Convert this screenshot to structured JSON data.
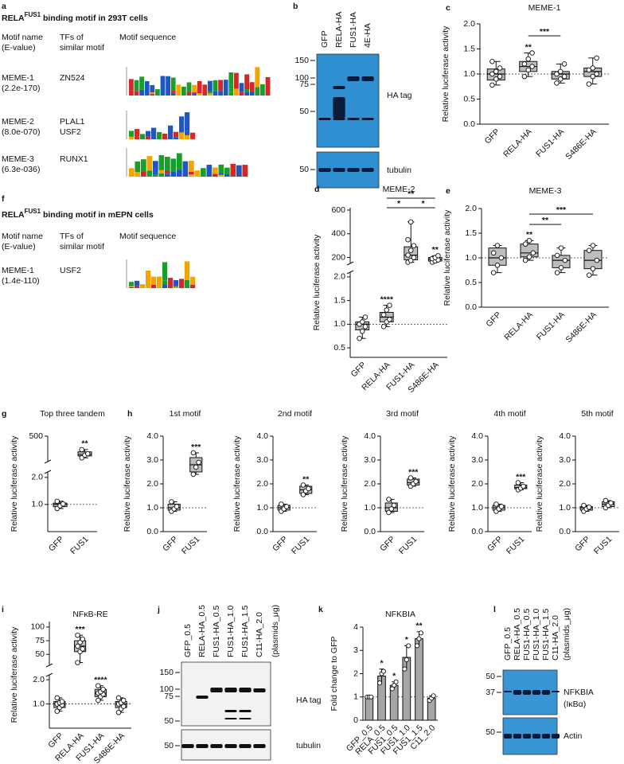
{
  "motifs": [
    {
      "panel": "a",
      "title_parts": [
        "RELA",
        "FUS1",
        " binding motif in 293T cells"
      ],
      "headers": [
        [
          "Motif name",
          "(E-value)"
        ],
        [
          "TFs of",
          "similar motif"
        ],
        [
          "Motif sequence"
        ]
      ],
      "rows": [
        {
          "name": "MEME-1",
          "evalue": "(2.2e-170)",
          "tfs": [
            "ZN524"
          ]
        },
        {
          "name": "MEME-2",
          "evalue": "(8.0e-070)",
          "tfs": [
            "PLAL1",
            "USF2"
          ]
        },
        {
          "name": "MEME-3",
          "evalue": "(6.3e-036)",
          "tfs": [
            "RUNX1"
          ]
        }
      ]
    },
    {
      "panel": "f",
      "title_parts": [
        "RELA",
        "FUS1",
        " binding motif in mEPN cells"
      ],
      "headers": [
        [
          "Motif name",
          "(E-value)"
        ],
        [
          "TFs of",
          "similar motif"
        ],
        [
          "Motif sequence"
        ]
      ],
      "rows": [
        {
          "name": "MEME-1",
          "evalue": "(1.4e-110)",
          "tfs": [
            "USF2"
          ]
        }
      ]
    }
  ],
  "blots": [
    {
      "panel": "b",
      "lanes": [
        "GFP",
        "RELA-HA",
        "FUS1-HA",
        "4E-HA"
      ],
      "markers_top": [
        150,
        100,
        75,
        50
      ],
      "markers_bottom": [
        50
      ],
      "labels_top": [
        "HA tag"
      ],
      "labels_bottom": [
        "tubulin"
      ]
    },
    {
      "panel": "j",
      "lanes": [
        "GFP_0.5",
        "RELA-HA_0.5",
        "FUS1-HA_0.5",
        "FUS1-HA_1.0",
        "FUS1-HA_1.5",
        "C11-HA_2.0"
      ],
      "note": "(plasmids_μg)",
      "markers_top": [
        150,
        100,
        75,
        50
      ],
      "markers_bottom": [
        50
      ],
      "labels_top": [
        "HA tag"
      ],
      "labels_bottom": [
        "tubulin"
      ]
    },
    {
      "panel": "l",
      "lanes": [
        "GFP_0.5",
        "RELA-HA_0.5",
        "FUS1-HA_0.5",
        "FUS1-HA_1.0",
        "FUS1-HA_1.5",
        "C11-HA_2.0"
      ],
      "note": "(plasmids_μg)",
      "markers_top": [
        50,
        37
      ],
      "markers_bottom": [
        50
      ],
      "labels_top": [
        "NFKBIA",
        "(IκBα)"
      ],
      "labels_bottom": [
        "Actin"
      ]
    }
  ],
  "chart_data": [
    {
      "panel": "c",
      "type": "box",
      "title": "MEME-1",
      "ylabel": "Relative luciferase activity",
      "color": "#bdbdbd",
      "categories": [
        "GFP",
        "RELA-HA",
        "FUS1-HA",
        "S486E-HA"
      ],
      "ylim": [
        0,
        2
      ],
      "yticks": [
        {
          "value": 0,
          "label": "0.0"
        },
        {
          "value": 0.5,
          "label": "0.5"
        },
        {
          "value": 1,
          "label": "1.0"
        },
        {
          "value": 1.5,
          "label": "1.5"
        },
        {
          "value": 2,
          "label": "2.0"
        }
      ],
      "refline": 1,
      "boxes": [
        {
          "min": 0.78,
          "q1": 0.88,
          "median": 1.0,
          "q3": 1.1,
          "max": 1.25,
          "points": [
            0.78,
            0.9,
            0.95,
            1.0,
            1.05,
            1.12,
            1.25
          ]
        },
        {
          "min": 0.95,
          "q1": 1.05,
          "median": 1.15,
          "q3": 1.25,
          "max": 1.42,
          "points": [
            0.95,
            1.08,
            1.15,
            1.2,
            1.3,
            1.42
          ]
        },
        {
          "min": 0.82,
          "q1": 0.9,
          "median": 1.0,
          "q3": 1.05,
          "max": 1.2,
          "points": [
            0.82,
            0.9,
            0.95,
            1.0,
            1.05,
            1.2
          ]
        },
        {
          "min": 0.8,
          "q1": 0.95,
          "median": 1.05,
          "q3": 1.12,
          "max": 1.32,
          "points": [
            0.8,
            0.95,
            1.0,
            1.08,
            1.12,
            1.32
          ]
        }
      ],
      "significance": [
        null,
        "**",
        null,
        null
      ],
      "brackets": [
        {
          "from": 1,
          "to": 2,
          "label": "***"
        }
      ]
    },
    {
      "panel": "d",
      "type": "box",
      "title": "MEME-2",
      "ylabel": "Relative luciferase activity",
      "color": "#bdbdbd",
      "categories": [
        "GFP",
        "RELA-HA",
        "FUS1-HA",
        "S486E-HA"
      ],
      "segments": [
        {
          "ylim": [
            0.3,
            2.1
          ],
          "yticks": [
            {
              "value": 0.5,
              "label": "0.5"
            },
            {
              "value": 1,
              "label": "1.0"
            },
            {
              "value": 1.5,
              "label": "1.5"
            },
            {
              "value": 2,
              "label": "2.0"
            }
          ]
        },
        {
          "ylim": [
            150,
            620
          ],
          "yticks": [
            200,
            400,
            600
          ]
        }
      ],
      "refline": 1,
      "boxes": [
        {
          "min": 0.7,
          "q1": 0.88,
          "median": 1.0,
          "q3": 1.05,
          "max": 1.15,
          "points": [
            0.7,
            0.85,
            0.95,
            1.0,
            1.05,
            1.15
          ]
        },
        {
          "min": 0.95,
          "q1": 1.05,
          "median": 1.15,
          "q3": 1.25,
          "max": 1.4,
          "points": [
            0.95,
            1.05,
            1.1,
            1.2,
            1.3,
            1.4
          ]
        },
        {
          "min": 160,
          "q1": 180,
          "median": 220,
          "q3": 290,
          "max": 500,
          "points": [
            160,
            175,
            200,
            220,
            260,
            300,
            350,
            500
          ]
        },
        {
          "min": 160,
          "q1": 170,
          "median": 185,
          "q3": 200,
          "max": 215,
          "points": [
            160,
            170,
            180,
            190,
            200,
            215
          ]
        }
      ],
      "significance": [
        null,
        "****",
        null,
        "**"
      ],
      "brackets": [
        {
          "from": 1,
          "to": 3,
          "label": "**"
        },
        {
          "from": 1,
          "to": 2,
          "label": "*"
        },
        {
          "from": 2,
          "to": 3,
          "label": "*"
        }
      ]
    },
    {
      "panel": "e",
      "type": "box",
      "title": "MEME-3",
      "ylabel": "Relative luciferase activity",
      "color": "#bdbdbd",
      "categories": [
        "GFP",
        "RELA-HA",
        "FUS1-HA",
        "S486E-HA"
      ],
      "ylim": [
        0,
        2
      ],
      "yticks": [
        {
          "value": 0,
          "label": "0.0"
        },
        {
          "value": 0.5,
          "label": "0.5"
        },
        {
          "value": 1,
          "label": "1.0"
        },
        {
          "value": 1.5,
          "label": "1.5"
        },
        {
          "value": 2,
          "label": "2.0"
        }
      ],
      "refline": 1,
      "boxes": [
        {
          "min": 0.7,
          "q1": 0.85,
          "median": 1.0,
          "q3": 1.2,
          "max": 1.25,
          "points": [
            0.7,
            0.85,
            1.0,
            1.1,
            1.25
          ]
        },
        {
          "min": 0.95,
          "q1": 1.02,
          "median": 1.1,
          "q3": 1.28,
          "max": 1.35,
          "points": [
            0.95,
            1.02,
            1.1,
            1.28,
            1.35
          ]
        },
        {
          "min": 0.7,
          "q1": 0.8,
          "median": 0.95,
          "q3": 1.05,
          "max": 1.2,
          "points": [
            0.7,
            0.8,
            0.95,
            1.05,
            1.2
          ]
        },
        {
          "min": 0.65,
          "q1": 0.78,
          "median": 0.95,
          "q3": 1.15,
          "max": 1.25,
          "points": [
            0.65,
            0.78,
            0.95,
            1.15,
            1.25
          ]
        }
      ],
      "significance": [
        null,
        "**",
        null,
        null
      ],
      "brackets": [
        {
          "from": 1,
          "to": 3,
          "label": "***"
        },
        {
          "from": 1,
          "to": 2,
          "label": "**"
        }
      ]
    },
    {
      "panel": "g",
      "type": "box",
      "title": "Top three tandem",
      "ylabel": "Relative luciferase activity",
      "color": "#bdbdbd",
      "categories": [
        "GFP",
        "FUS1"
      ],
      "segments": [
        {
          "ylim": [
            0,
            2.2
          ],
          "yticks": [
            {
              "value": 1,
              "label": "1.0"
            },
            {
              "value": 2,
              "label": "2.0"
            }
          ]
        },
        {
          "ylim": [
            160,
            500
          ],
          "yticks": [
            500
          ]
        }
      ],
      "refline": 1,
      "boxes": [
        {
          "min": 0.85,
          "q1": 0.92,
          "median": 1.0,
          "q3": 1.05,
          "max": 1.12,
          "points": [
            0.85,
            0.95,
            1.02,
            1.12
          ]
        },
        {
          "min": 210,
          "q1": 235,
          "median": 255,
          "q3": 290,
          "max": 320,
          "points": [
            210,
            245,
            265,
            320
          ]
        }
      ],
      "significance": [
        null,
        "**"
      ]
    },
    {
      "panel": "h",
      "type": "box",
      "title": "1st motif",
      "ylabel": "Relative luciferase activity",
      "color": "#bdbdbd",
      "categories": [
        "GFP",
        "FUS1"
      ],
      "ylim": [
        0,
        4
      ],
      "yticks": [
        {
          "value": 0,
          "label": "0.0"
        },
        {
          "value": 1,
          "label": "1.0"
        },
        {
          "value": 2,
          "label": "2.0"
        },
        {
          "value": 3,
          "label": "3.0"
        },
        {
          "value": 4,
          "label": "4.0"
        }
      ],
      "refline": 1,
      "boxes": [
        {
          "min": 0.85,
          "q1": 0.9,
          "median": 1.0,
          "q3": 1.15,
          "max": 1.25,
          "points": [
            0.85,
            0.95,
            1.05,
            1.25
          ]
        },
        {
          "min": 2.4,
          "q1": 2.5,
          "median": 2.8,
          "q3": 3.1,
          "max": 3.3,
          "points": [
            2.4,
            2.7,
            2.9,
            3.3
          ]
        }
      ],
      "significance": [
        null,
        "***"
      ]
    },
    {
      "type": "box",
      "title": "2nd motif",
      "ylabel": "Relative luciferase activity",
      "color": "#bdbdbd",
      "categories": [
        "GFP",
        "FUS1"
      ],
      "ylim": [
        0,
        4
      ],
      "yticks": [
        {
          "value": 0,
          "label": "0.0"
        },
        {
          "value": 1,
          "label": "1.0"
        },
        {
          "value": 2,
          "label": "2.0"
        },
        {
          "value": 3,
          "label": "3.0"
        },
        {
          "value": 4,
          "label": "4.0"
        }
      ],
      "refline": 1,
      "boxes": [
        {
          "min": 0.85,
          "q1": 0.9,
          "median": 1.0,
          "q3": 1.1,
          "max": 1.15,
          "points": [
            0.85,
            0.95,
            1.05,
            1.15
          ]
        },
        {
          "min": 1.55,
          "q1": 1.6,
          "median": 1.75,
          "q3": 1.9,
          "max": 1.95,
          "points": [
            1.55,
            1.7,
            1.8,
            1.95
          ]
        }
      ],
      "significance": [
        null,
        "**"
      ]
    },
    {
      "type": "box",
      "title": "3rd motif",
      "ylabel": "Relative luciferase activity",
      "color": "#bdbdbd",
      "categories": [
        "GFP",
        "FUS1"
      ],
      "ylim": [
        0,
        4
      ],
      "yticks": [
        {
          "value": 0,
          "label": "0.0"
        },
        {
          "value": 1,
          "label": "1.0"
        },
        {
          "value": 2,
          "label": "2.0"
        },
        {
          "value": 3,
          "label": "3.0"
        },
        {
          "value": 4,
          "label": "4.0"
        }
      ],
      "refline": 1,
      "boxes": [
        {
          "min": 0.8,
          "q1": 0.85,
          "median": 1.0,
          "q3": 1.2,
          "max": 1.35,
          "points": [
            0.8,
            0.95,
            1.1,
            1.35
          ]
        },
        {
          "min": 1.9,
          "q1": 1.95,
          "median": 2.05,
          "q3": 2.2,
          "max": 2.25,
          "points": [
            1.9,
            2.0,
            2.1,
            2.25
          ]
        }
      ],
      "significance": [
        null,
        "***"
      ]
    },
    {
      "type": "box",
      "title": "4th motif",
      "ylabel": "Relative luciferase activity",
      "color": "#bdbdbd",
      "categories": [
        "GFP",
        "FUS1"
      ],
      "ylim": [
        0,
        4
      ],
      "yticks": [
        {
          "value": 0,
          "label": "0.0"
        },
        {
          "value": 1,
          "label": "1.0"
        },
        {
          "value": 2,
          "label": "2.0"
        },
        {
          "value": 3,
          "label": "3.0"
        },
        {
          "value": 4,
          "label": "4.0"
        }
      ],
      "refline": 1,
      "boxes": [
        {
          "min": 0.85,
          "q1": 0.9,
          "median": 1.0,
          "q3": 1.1,
          "max": 1.15,
          "points": [
            0.85,
            0.95,
            1.05,
            1.15
          ]
        },
        {
          "min": 1.75,
          "q1": 1.8,
          "median": 1.85,
          "q3": 1.95,
          "max": 2.05,
          "points": [
            1.75,
            1.82,
            1.9,
            2.05
          ]
        }
      ],
      "significance": [
        null,
        "***"
      ]
    },
    {
      "type": "box",
      "title": "5th motif",
      "ylabel": "Relative luciferase activity",
      "color": "#bdbdbd",
      "categories": [
        "GFP",
        "FUS1"
      ],
      "ylim": [
        0,
        4
      ],
      "yticks": [
        {
          "value": 0,
          "label": "0.0"
        },
        {
          "value": 1,
          "label": "1.0"
        },
        {
          "value": 2,
          "label": "2.0"
        },
        {
          "value": 3,
          "label": "3.0"
        },
        {
          "value": 4,
          "label": "4.0"
        }
      ],
      "refline": 1,
      "boxes": [
        {
          "min": 0.85,
          "q1": 0.9,
          "median": 1.0,
          "q3": 1.05,
          "max": 1.1,
          "points": [
            0.85,
            0.95,
            1.02,
            1.1
          ]
        },
        {
          "min": 1.0,
          "q1": 1.05,
          "median": 1.15,
          "q3": 1.25,
          "max": 1.3,
          "points": [
            1.0,
            1.1,
            1.2,
            1.3
          ]
        }
      ],
      "significance": [
        null,
        null
      ]
    },
    {
      "panel": "i",
      "type": "box",
      "title": "NFκB-RE",
      "ylabel": "Relative luciferase activity",
      "color": "#bdbdbd",
      "categories": [
        "GFP",
        "RELA-HA",
        "FUS1-HA",
        "S486E-HA"
      ],
      "segments": [
        {
          "ylim": [
            0,
            2.2
          ],
          "yticks": [
            {
              "value": 1,
              "label": "1.0"
            },
            {
              "value": 2,
              "label": "2.0"
            }
          ]
        },
        {
          "ylim": [
            30,
            110
          ],
          "yticks": [
            50,
            75,
            100
          ]
        }
      ],
      "refline": 1,
      "boxes": [
        {
          "min": 0.7,
          "q1": 0.85,
          "median": 1.0,
          "q3": 1.1,
          "max": 1.25,
          "points": [
            0.7,
            0.85,
            0.95,
            1.0,
            1.05,
            1.1,
            1.25
          ]
        },
        {
          "min": 35,
          "q1": 55,
          "median": 65,
          "q3": 75,
          "max": 85,
          "points": [
            35,
            55,
            60,
            65,
            72,
            78,
            85
          ]
        },
        {
          "min": 1.15,
          "q1": 1.3,
          "median": 1.45,
          "q3": 1.6,
          "max": 1.75,
          "points": [
            1.15,
            1.3,
            1.4,
            1.45,
            1.5,
            1.6,
            1.75
          ]
        },
        {
          "min": 0.65,
          "q1": 0.85,
          "median": 1.0,
          "q3": 1.1,
          "max": 1.25,
          "points": [
            0.65,
            0.8,
            0.9,
            1.0,
            1.05,
            1.15,
            1.25
          ]
        }
      ],
      "significance": [
        null,
        "***",
        "****",
        null
      ]
    },
    {
      "panel": "k",
      "type": "bar",
      "title": "NFKBIA",
      "ylabel": "Fold change to GFP",
      "color": "#a6a6a6",
      "categories": [
        "GFP_0.5",
        "RELA_0.5",
        "FUS1_0.5",
        "FUS1_1.0",
        "FUS1_1.5",
        "C11_2.0"
      ],
      "ylim": [
        0,
        4
      ],
      "yticks": [
        0,
        1,
        2,
        3,
        4
      ],
      "refline": 1,
      "values": [
        1.0,
        1.9,
        1.5,
        2.7,
        3.5,
        0.95
      ],
      "errors": [
        0,
        0.3,
        0.15,
        0.5,
        0.3,
        0.1
      ],
      "points": [
        [
          1,
          1,
          1
        ],
        [
          1.6,
          2.0,
          2.1
        ],
        [
          1.35,
          1.5,
          1.65
        ],
        [
          2.2,
          2.6,
          3.2
        ],
        [
          3.2,
          3.5,
          3.75
        ],
        [
          0.85,
          0.95,
          1.05
        ]
      ],
      "significance": [
        null,
        "*",
        "*",
        "*",
        "**",
        null
      ]
    }
  ]
}
